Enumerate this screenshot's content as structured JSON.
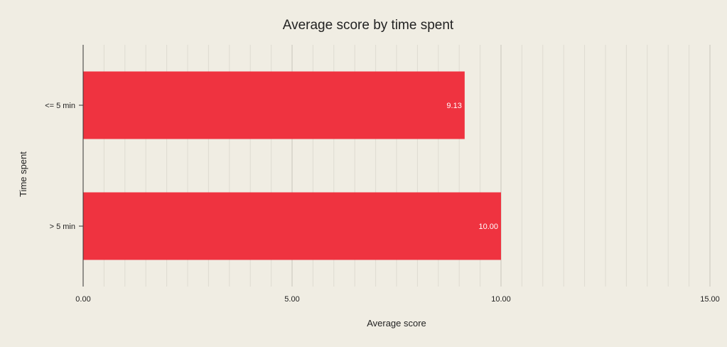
{
  "chart_data": {
    "type": "bar",
    "orientation": "horizontal",
    "title": "Average score by time spent",
    "xlabel": "Average score",
    "ylabel": "Time spent",
    "categories": [
      "<= 5 min",
      "> 5 min"
    ],
    "series": [
      {
        "values": [
          9.13,
          10.0
        ],
        "data_labels": [
          "9.13",
          "10.00"
        ]
      }
    ],
    "xlim": [
      0,
      15
    ],
    "x_ticks": [
      0,
      5,
      10,
      15
    ],
    "x_tick_labels": [
      "0.00",
      "5.00",
      "10.00",
      "15.00"
    ],
    "grid": true,
    "legend": "none",
    "colors": {
      "bar": "#ef3340",
      "background": "#f0ede3",
      "major_grid": "#c8c5bb",
      "minor_grid": "#dedbd1",
      "axis": "#333333"
    }
  }
}
